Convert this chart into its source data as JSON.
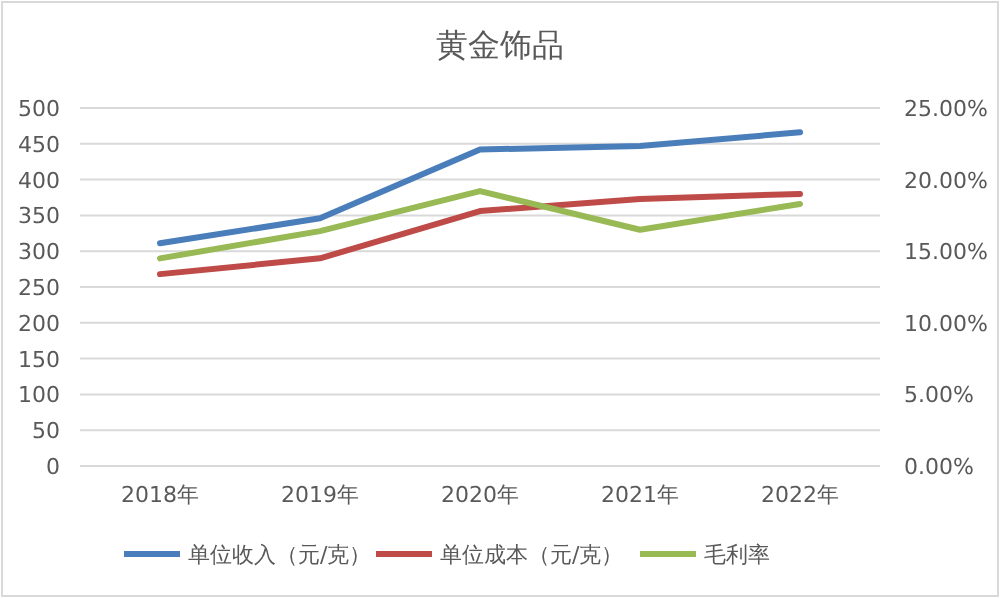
{
  "chart_data": {
    "type": "line",
    "title": "黄金饰品",
    "categories": [
      "2018年",
      "2019年",
      "2020年",
      "2021年",
      "2022年"
    ],
    "series": [
      {
        "name": "单位收入（元/克）",
        "color": "#4a7ebb",
        "values": [
          311,
          346,
          442,
          447,
          466
        ]
      },
      {
        "name": "单位成本（元/克）",
        "color": "#be4b48",
        "values": [
          268,
          290,
          356,
          373,
          380
        ]
      },
      {
        "name": "毛利率",
        "color": "#98b954",
        "axis": "y2",
        "values": [
          14.5,
          16.4,
          19.2,
          16.5,
          18.3
        ]
      }
    ],
    "ylim": [
      0,
      500
    ],
    "yticks": [
      0,
      50,
      100,
      150,
      200,
      250,
      300,
      350,
      400,
      450,
      500
    ],
    "y2lim": [
      0,
      25
    ],
    "y2ticks": [
      {
        "value": 0,
        "label": "0.00%"
      },
      {
        "value": 5,
        "label": "5.00%"
      },
      {
        "value": 10,
        "label": "10.00%"
      },
      {
        "value": 15,
        "label": "15.00%"
      },
      {
        "value": 20,
        "label": "20.00%"
      },
      {
        "value": 25,
        "label": "25.00%"
      }
    ],
    "grid": "y",
    "legend": "bottom",
    "marker": "none",
    "line_style": "solid"
  }
}
